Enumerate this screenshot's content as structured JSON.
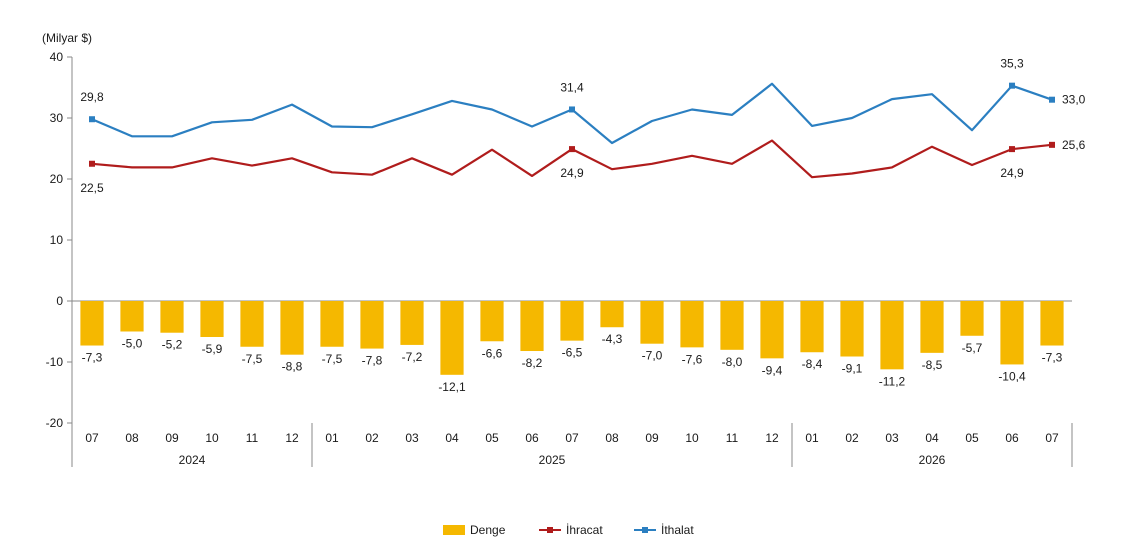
{
  "chart_data": {
    "type": "bar",
    "unit_label": "(Milyar $)",
    "y_ticks": [
      40,
      30,
      20,
      10,
      0,
      -10,
      -20
    ],
    "ylim": [
      -20,
      40
    ],
    "categories": [
      "07",
      "08",
      "09",
      "10",
      "11",
      "12",
      "01",
      "02",
      "03",
      "04",
      "05",
      "06",
      "07",
      "08",
      "09",
      "10",
      "11",
      "12",
      "01",
      "02",
      "03",
      "04",
      "05",
      "06",
      "07"
    ],
    "year_groups": [
      {
        "label": "2024",
        "start": 0,
        "end": 5
      },
      {
        "label": "2025",
        "start": 6,
        "end": 17
      },
      {
        "label": "2026",
        "start": 18,
        "end": 24
      }
    ],
    "legend_position": "bottom-center",
    "series": [
      {
        "name": "Denge",
        "kind": "bar",
        "color": "#f5b800",
        "values": [
          -7.3,
          -5.0,
          -5.2,
          -5.9,
          -7.5,
          -8.8,
          -7.5,
          -7.8,
          -7.2,
          -12.1,
          -6.6,
          -8.2,
          -6.5,
          -4.3,
          -7.0,
          -7.6,
          -8.0,
          -9.4,
          -8.4,
          -9.1,
          -11.2,
          -8.5,
          -5.7,
          -10.4,
          -7.3
        ],
        "labels": [
          "-7,3",
          "-5,0",
          "-5,2",
          "-5,9",
          "-7,5",
          "-8,8",
          "-7,5",
          "-7,8",
          "-7,2",
          "-12,1",
          "-6,6",
          "-8,2",
          "-6,5",
          "-4,3",
          "-7,0",
          "-7,6",
          "-8,0",
          "-9,4",
          "-8,4",
          "-9,1",
          "-11,2",
          "-8,5",
          "-5,7",
          "-10,4",
          "-7,3"
        ]
      },
      {
        "name": "İhracat",
        "kind": "line",
        "color": "#b01c1c",
        "values": [
          22.5,
          21.9,
          21.9,
          23.4,
          22.2,
          23.4,
          21.1,
          20.7,
          23.4,
          20.7,
          24.8,
          20.5,
          24.9,
          21.6,
          22.5,
          23.8,
          22.5,
          26.3,
          20.3,
          20.9,
          21.9,
          25.3,
          22.3,
          24.9,
          25.6
        ],
        "labeled_points": [
          {
            "index": 0,
            "label": "22,5",
            "pos": "below"
          },
          {
            "index": 12,
            "label": "24,9",
            "pos": "below"
          },
          {
            "index": 23,
            "label": "24,9",
            "pos": "below"
          },
          {
            "index": 24,
            "label": "25,6",
            "pos": "right"
          }
        ]
      },
      {
        "name": "İthalat",
        "kind": "line",
        "color": "#2b7fc1",
        "values": [
          29.8,
          27.0,
          27.0,
          29.3,
          29.7,
          32.2,
          28.6,
          28.5,
          30.6,
          32.8,
          31.4,
          28.6,
          31.4,
          25.9,
          29.5,
          31.4,
          30.5,
          35.6,
          28.7,
          30.0,
          33.1,
          33.9,
          28.0,
          35.3,
          33.0
        ],
        "labeled_points": [
          {
            "index": 0,
            "label": "29,8",
            "pos": "above"
          },
          {
            "index": 12,
            "label": "31,4",
            "pos": "above"
          },
          {
            "index": 23,
            "label": "35,3",
            "pos": "above"
          },
          {
            "index": 24,
            "label": "33,0",
            "pos": "right"
          }
        ]
      }
    ]
  }
}
